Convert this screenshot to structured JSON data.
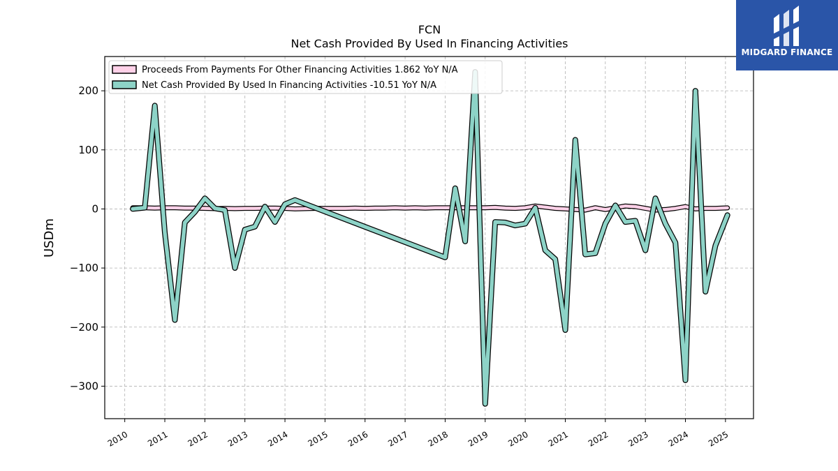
{
  "brand": {
    "name": "MIDGARD FINANCE",
    "color": "#2a55a8"
  },
  "chart_data": {
    "type": "line",
    "title": "FCN",
    "subtitle": "Net Cash Provided By Used In Financing Activities",
    "ylabel": "USDm",
    "xlabel": "",
    "xlim": [
      2009.5,
      2025.7
    ],
    "ylim": [
      -355,
      258
    ],
    "yticks": [
      -300,
      -200,
      -100,
      0,
      100,
      200
    ],
    "ytick_labels": [
      "−300",
      "−200",
      "−100",
      "0",
      "100",
      "200"
    ],
    "xticks": [
      2010,
      2011,
      2012,
      2013,
      2014,
      2015,
      2016,
      2017,
      2018,
      2019,
      2020,
      2021,
      2022,
      2023,
      2024,
      2025
    ],
    "xtick_labels": [
      "2010",
      "2011",
      "2012",
      "2013",
      "2014",
      "2015",
      "2016",
      "2017",
      "2018",
      "2019",
      "2020",
      "2021",
      "2022",
      "2023",
      "2024",
      "2025"
    ],
    "grid": true,
    "legend_position": "top-left",
    "series": [
      {
        "name": "Proceeds From Payments For Other Financing Activities",
        "legend_label": "Proceeds From Payments For Other Financing Activities  1.862 YoY N/A",
        "color": "#ffd1e8",
        "edge_color": "#000000",
        "x": [
          2010.2,
          2010.5,
          2010.75,
          2011.0,
          2011.25,
          2011.5,
          2011.75,
          2012.0,
          2012.25,
          2012.5,
          2012.75,
          2013.0,
          2013.25,
          2013.5,
          2013.75,
          2014.0,
          2014.25,
          2014.5,
          2014.75,
          2015.0,
          2015.25,
          2015.5,
          2015.75,
          2016.0,
          2016.25,
          2016.5,
          2016.75,
          2017.0,
          2017.25,
          2017.5,
          2017.75,
          2018.0,
          2018.25,
          2018.5,
          2018.75,
          2019.0,
          2019.25,
          2019.5,
          2019.75,
          2020.0,
          2020.25,
          2020.5,
          2020.75,
          2021.0,
          2021.25,
          2021.5,
          2021.75,
          2022.0,
          2022.25,
          2022.5,
          2022.75,
          2023.0,
          2023.25,
          2023.5,
          2023.75,
          2024.0,
          2024.25,
          2024.5,
          2024.75,
          2025.05
        ],
        "values": [
          2,
          2,
          1.5,
          2,
          2,
          1.5,
          1.5,
          1,
          0.5,
          1,
          0.5,
          1,
          1,
          1.5,
          1.5,
          1,
          0,
          0.5,
          1,
          1,
          1,
          1,
          1.5,
          1,
          1.5,
          1.5,
          2,
          1.5,
          2,
          1.5,
          2,
          2,
          2,
          2,
          2,
          2,
          2.5,
          1.5,
          1,
          2,
          5,
          3,
          1,
          0,
          -1,
          -2,
          2,
          -1,
          2,
          5,
          4,
          1,
          -2,
          -1,
          1,
          4,
          0,
          1,
          1,
          1.862
        ]
      },
      {
        "name": "Net Cash Provided By Used In Financing Activities",
        "legend_label": "Net Cash Provided By Used In Financing Activities  -10.51 YoY N/A",
        "color": "#8dd3c7",
        "edge_color": "#000000",
        "x": [
          2010.2,
          2010.5,
          2010.75,
          2011.0,
          2011.25,
          2011.5,
          2011.75,
          2012.0,
          2012.25,
          2012.5,
          2012.75,
          2013.0,
          2013.25,
          2013.5,
          2013.75,
          2014.0,
          2014.25,
          2018.0,
          2018.25,
          2018.5,
          2018.75,
          2019.0,
          2019.25,
          2019.5,
          2019.75,
          2020.0,
          2020.25,
          2020.5,
          2020.75,
          2021.0,
          2021.25,
          2021.5,
          2021.75,
          2022.0,
          2022.25,
          2022.5,
          2022.75,
          2023.0,
          2023.25,
          2023.5,
          2023.75,
          2024.0,
          2024.25,
          2024.5,
          2024.75,
          2025.05
        ],
        "values": [
          0,
          2,
          175,
          -40,
          -188,
          -23,
          -5,
          18,
          1,
          -2,
          -100,
          -35,
          -30,
          4,
          -22,
          8,
          15,
          -82,
          35,
          -55,
          232,
          -330,
          -22,
          -23,
          -28,
          -25,
          2,
          -70,
          -85,
          -205,
          117,
          -77,
          -75,
          -25,
          6,
          -22,
          -20,
          -70,
          18,
          -25,
          -57,
          -290,
          200,
          -140,
          -62,
          -10.51
        ]
      }
    ]
  }
}
